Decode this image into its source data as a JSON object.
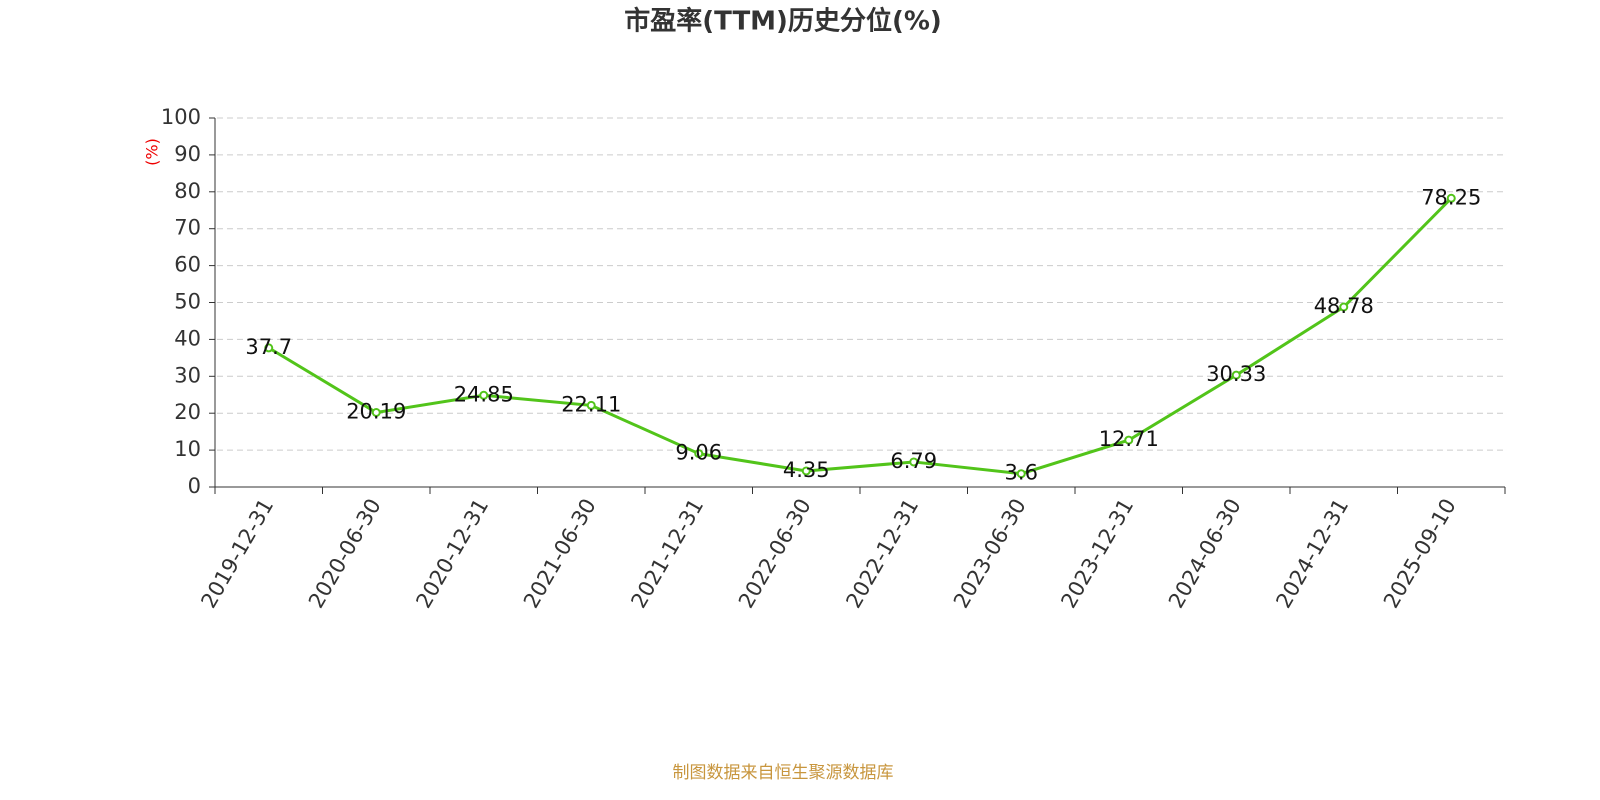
{
  "chart_data": {
    "type": "line",
    "title": "市盈率(TTM)历史分位(%)",
    "y_label": "(%)",
    "source": "制图数据来自恒生聚源数据库",
    "categories": [
      "2019-12-31",
      "2020-06-30",
      "2020-12-31",
      "2021-06-30",
      "2021-12-31",
      "2022-06-30",
      "2022-12-31",
      "2023-06-30",
      "2023-12-31",
      "2024-06-30",
      "2024-12-31",
      "2025-09-10"
    ],
    "values": [
      37.7,
      20.19,
      24.85,
      22.11,
      9.06,
      4.35,
      6.79,
      3.6,
      12.71,
      30.33,
      48.78,
      78.25
    ],
    "color": "#52c41a",
    "ylim": [
      0,
      100
    ],
    "yticks": [
      0,
      10,
      20,
      30,
      40,
      50,
      60,
      70,
      80,
      90,
      100
    ],
    "grid": true
  }
}
